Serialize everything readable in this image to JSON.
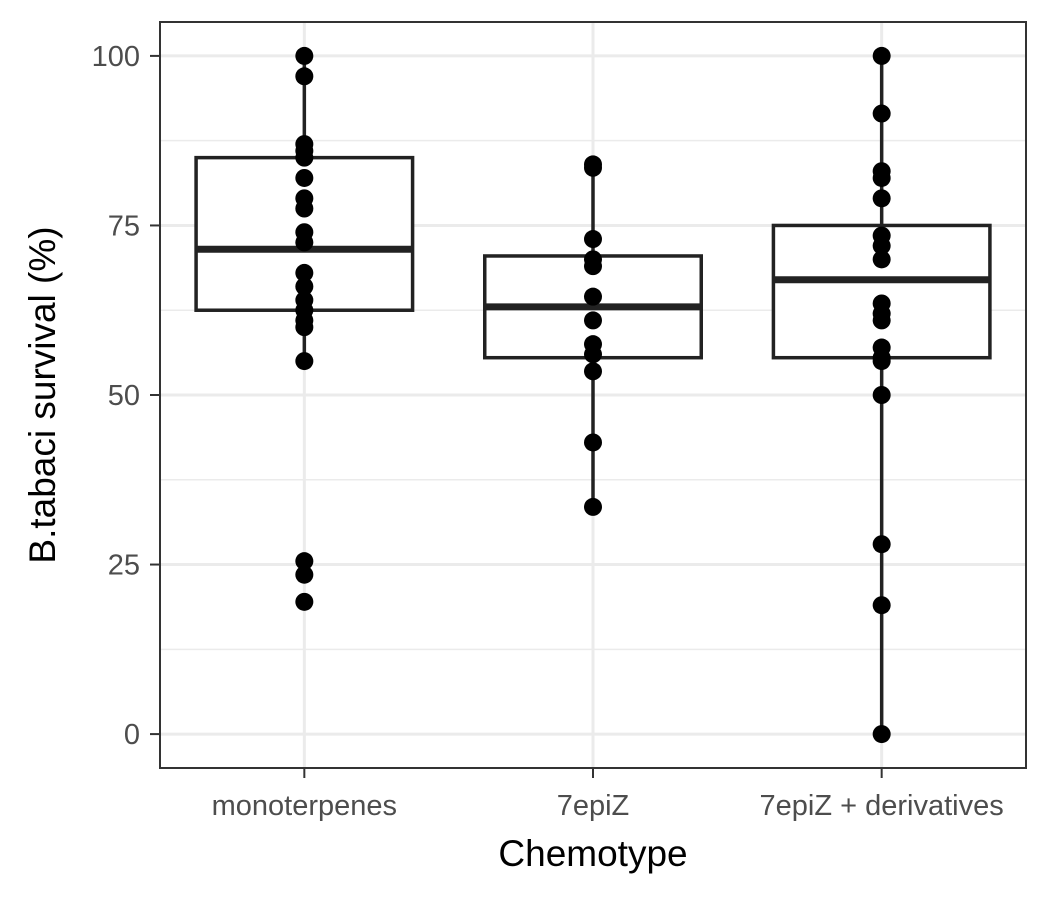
{
  "chart_data": {
    "type": "box",
    "xlabel": "Chemotype",
    "ylabel": "B.tabaci survival (%)",
    "categories": [
      "monoterpenes",
      "7epiZ",
      "7epiZ + derivatives"
    ],
    "ylim": [
      -5,
      105
    ],
    "y_ticks": [
      0,
      25,
      50,
      75,
      100
    ],
    "y_minor_ticks": [
      12.5,
      37.5,
      62.5,
      87.5
    ],
    "grid": true,
    "boxes": [
      {
        "category": "monoterpenes",
        "q1": 62.5,
        "median": 71.5,
        "q3": 85,
        "whisker_low": 55,
        "whisker_high": 100
      },
      {
        "category": "7epiZ",
        "q1": 55.5,
        "median": 63,
        "q3": 70.5,
        "whisker_low": 33.5,
        "whisker_high": 84
      },
      {
        "category": "7epiZ + derivatives",
        "q1": 55.5,
        "median": 67,
        "q3": 75,
        "whisker_low": 0,
        "whisker_high": 100
      }
    ],
    "points": [
      {
        "category": "monoterpenes",
        "values": [
          100,
          97,
          87,
          86,
          85,
          82,
          79,
          77.5,
          74,
          72.5,
          68,
          66,
          64,
          62.5,
          61,
          60,
          55,
          25.5,
          23.5,
          19.5
        ]
      },
      {
        "category": "7epiZ",
        "values": [
          84,
          83.5,
          73,
          70,
          69,
          64.5,
          61,
          57.5,
          56,
          53.5,
          43,
          33.5
        ]
      },
      {
        "category": "7epiZ + derivatives",
        "values": [
          100,
          91.5,
          83,
          82,
          79,
          73.5,
          72,
          70,
          63.5,
          62,
          61,
          57,
          55.5,
          55,
          50,
          28,
          19,
          0
        ]
      }
    ]
  }
}
